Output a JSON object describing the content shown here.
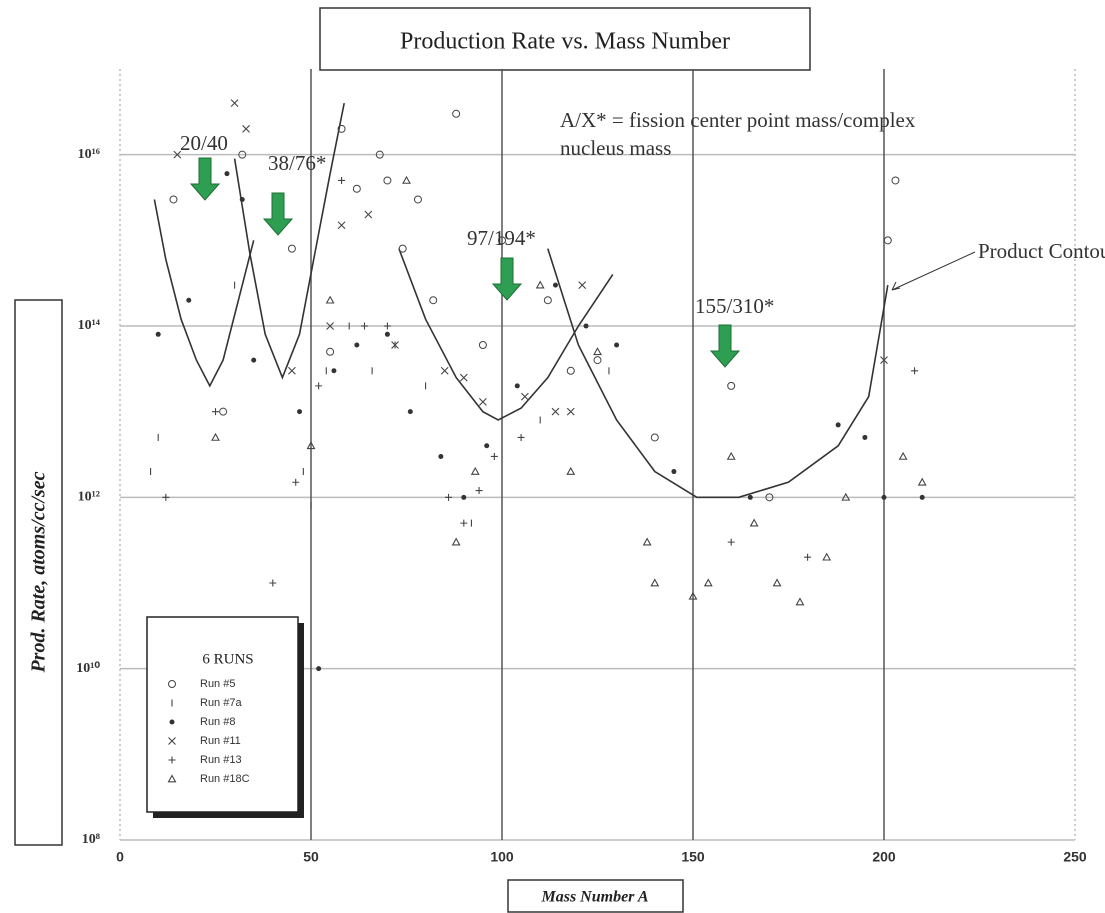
{
  "chart_data": {
    "type": "scatter",
    "title": "Production Rate vs. Mass Number",
    "x_label": "Mass Number A",
    "y_label": "Prod. Rate, atoms/cc/sec",
    "legend_title": "6 RUNS",
    "yscale": "log",
    "grid": true,
    "legend_position": "lower left",
    "xlim": [
      0,
      250
    ],
    "ylim": [
      100000000,
      100000000000000000
    ],
    "xticks": [
      0,
      50,
      100,
      150,
      200,
      250
    ],
    "yticks": [
      {
        "value": 100000000,
        "label": "10⁸"
      },
      {
        "value": 10000000000,
        "label": "10¹⁰"
      },
      {
        "value": 1000000000000,
        "label": "10¹²"
      },
      {
        "value": 100000000000000,
        "label": "10¹⁴"
      },
      {
        "value": 10000000000000000,
        "label": "10¹⁶"
      }
    ],
    "annotations": [
      "20/40",
      "38/76*",
      "97/194*",
      "155/310*",
      "A/X* = fission center point mass/complex",
      "nucleus mass",
      "Product Contour"
    ],
    "series": [
      {
        "name": "Run #5",
        "marker": "circle",
        "color": "#444",
        "x": [
          14,
          27,
          32,
          45,
          55,
          58,
          62,
          68,
          70,
          74,
          78,
          82,
          88,
          95,
          100,
          112,
          118,
          125,
          140,
          160,
          170,
          201,
          203
        ],
        "values": [
          3000000000000000.0,
          10000000000000.0,
          1e+16,
          800000000000000.0,
          50000000000000.0,
          2e+16,
          4000000000000000.0,
          1e+16,
          5000000000000000.0,
          800000000000000.0,
          3000000000000000.0,
          200000000000000.0,
          3e+16,
          60000000000000.0,
          1000000000000000.0,
          200000000000000.0,
          30000000000000.0,
          40000000000000.0,
          5000000000000.0,
          20000000000000.0,
          1000000000000.0,
          1000000000000000.0,
          5000000000000000.0
        ]
      },
      {
        "name": "Run #7a",
        "marker": "tick",
        "color": "#444",
        "x": [
          8,
          10,
          30,
          48,
          50,
          54,
          60,
          66,
          72,
          80,
          92,
          110,
          128
        ],
        "values": [
          2000000000000.0,
          5000000000000.0,
          300000000000000.0,
          2000000000000.0,
          800000000000.0,
          30000000000000.0,
          100000000000000.0,
          30000000000000.0,
          60000000000000.0,
          20000000000000.0,
          500000000000.0,
          8000000000000.0,
          30000000000000.0
        ]
      },
      {
        "name": "Run #8",
        "marker": "dot",
        "color": "#333",
        "x": [
          10,
          18,
          28,
          32,
          35,
          47,
          52,
          56,
          62,
          70,
          76,
          84,
          90,
          96,
          104,
          114,
          122,
          130,
          145,
          165,
          188,
          195,
          200,
          210
        ],
        "values": [
          80000000000000.0,
          200000000000000.0,
          6000000000000000.0,
          3000000000000000.0,
          40000000000000.0,
          10000000000000.0,
          10000000000.0,
          30000000000000.0,
          60000000000000.0,
          80000000000000.0,
          10000000000000.0,
          3000000000000.0,
          1000000000000.0,
          4000000000000.0,
          20000000000000.0,
          300000000000000.0,
          100000000000000.0,
          60000000000000.0,
          2000000000000.0,
          1000000000000.0,
          7000000000000.0,
          5000000000000.0,
          1000000000000.0,
          1000000000000.0
        ]
      },
      {
        "name": "Run #11",
        "marker": "x",
        "color": "#444",
        "x": [
          15,
          30,
          33,
          45,
          55,
          58,
          65,
          72,
          85,
          90,
          95,
          106,
          114,
          118,
          121,
          200
        ],
        "values": [
          1e+16,
          4e+16,
          2e+16,
          30000000000000.0,
          100000000000000.0,
          1500000000000000.0,
          2000000000000000.0,
          60000000000000.0,
          30000000000000.0,
          25000000000000.0,
          13000000000000.0,
          15000000000000.0,
          10000000000000.0,
          10000000000000.0,
          300000000000000.0,
          40000000000000.0
        ]
      },
      {
        "name": "Run #13",
        "marker": "plus",
        "color": "#444",
        "x": [
          12,
          25,
          40,
          46,
          52,
          58,
          64,
          70,
          86,
          90,
          94,
          98,
          105,
          160,
          180,
          208
        ],
        "values": [
          1000000000000.0,
          10000000000000.0,
          100000000000.0,
          1500000000000.0,
          20000000000000.0,
          5000000000000000.0,
          100000000000000.0,
          100000000000000.0,
          1000000000000.0,
          500000000000.0,
          1200000000000.0,
          3000000000000.0,
          5000000000000.0,
          300000000000.0,
          200000000000.0,
          30000000000000.0
        ]
      },
      {
        "name": "Run #18C",
        "marker": "triangle",
        "color": "#444",
        "x": [
          25,
          50,
          55,
          75,
          88,
          93,
          110,
          118,
          125,
          138,
          140,
          150,
          154,
          160,
          166,
          172,
          178,
          185,
          190,
          205,
          210
        ],
        "values": [
          5000000000000.0,
          4000000000000.0,
          200000000000000.0,
          5000000000000000.0,
          300000000000.0,
          2000000000000.0,
          300000000000000.0,
          2000000000000.0,
          50000000000000.0,
          300000000000.0,
          100000000000.0,
          70000000000.0,
          100000000000.0,
          3000000000000.0,
          500000000000.0,
          100000000000.0,
          60000000000.0,
          200000000000.0,
          1000000000000.0,
          3000000000000.0,
          1500000000000.0
        ]
      }
    ],
    "contours": [
      {
        "color": "#333",
        "x": [
          9,
          12,
          16,
          20,
          23.5,
          27,
          31,
          35
        ],
        "values": [
          3000000000000000.0,
          600000000000000.0,
          120000000000000.0,
          40000000000000.0,
          20000000000000.0,
          40000000000000.0,
          200000000000000.0,
          1000000000000000.0
        ]
      },
      {
        "color": "#333",
        "x": [
          30,
          34,
          38,
          42.5,
          47,
          51,
          55,
          58.7
        ],
        "values": [
          9000000000000000.0,
          700000000000000.0,
          80000000000000.0,
          25000000000000.0,
          80000000000000.0,
          700000000000000.0,
          6000000000000000.0,
          4e+16
        ]
      },
      {
        "color": "#333",
        "x": [
          73,
          80,
          88,
          95,
          99,
          105,
          112,
          120,
          129
        ],
        "values": [
          800000000000000.0,
          120000000000000.0,
          25000000000000.0,
          10000000000000.0,
          8000000000000.0,
          11000000000000.0,
          25000000000000.0,
          100000000000000.0,
          400000000000000.0
        ]
      },
      {
        "color": "#333",
        "x": [
          112,
          120,
          130,
          140,
          151,
          162,
          175,
          188,
          196,
          201
        ],
        "values": [
          800000000000000.0,
          60000000000000.0,
          8000000000000.0,
          2000000000000.0,
          1000000000000.0,
          1000000000000.0,
          1500000000000.0,
          4000000000000.0,
          15000000000000.0,
          300000000000000.0
        ]
      }
    ]
  }
}
